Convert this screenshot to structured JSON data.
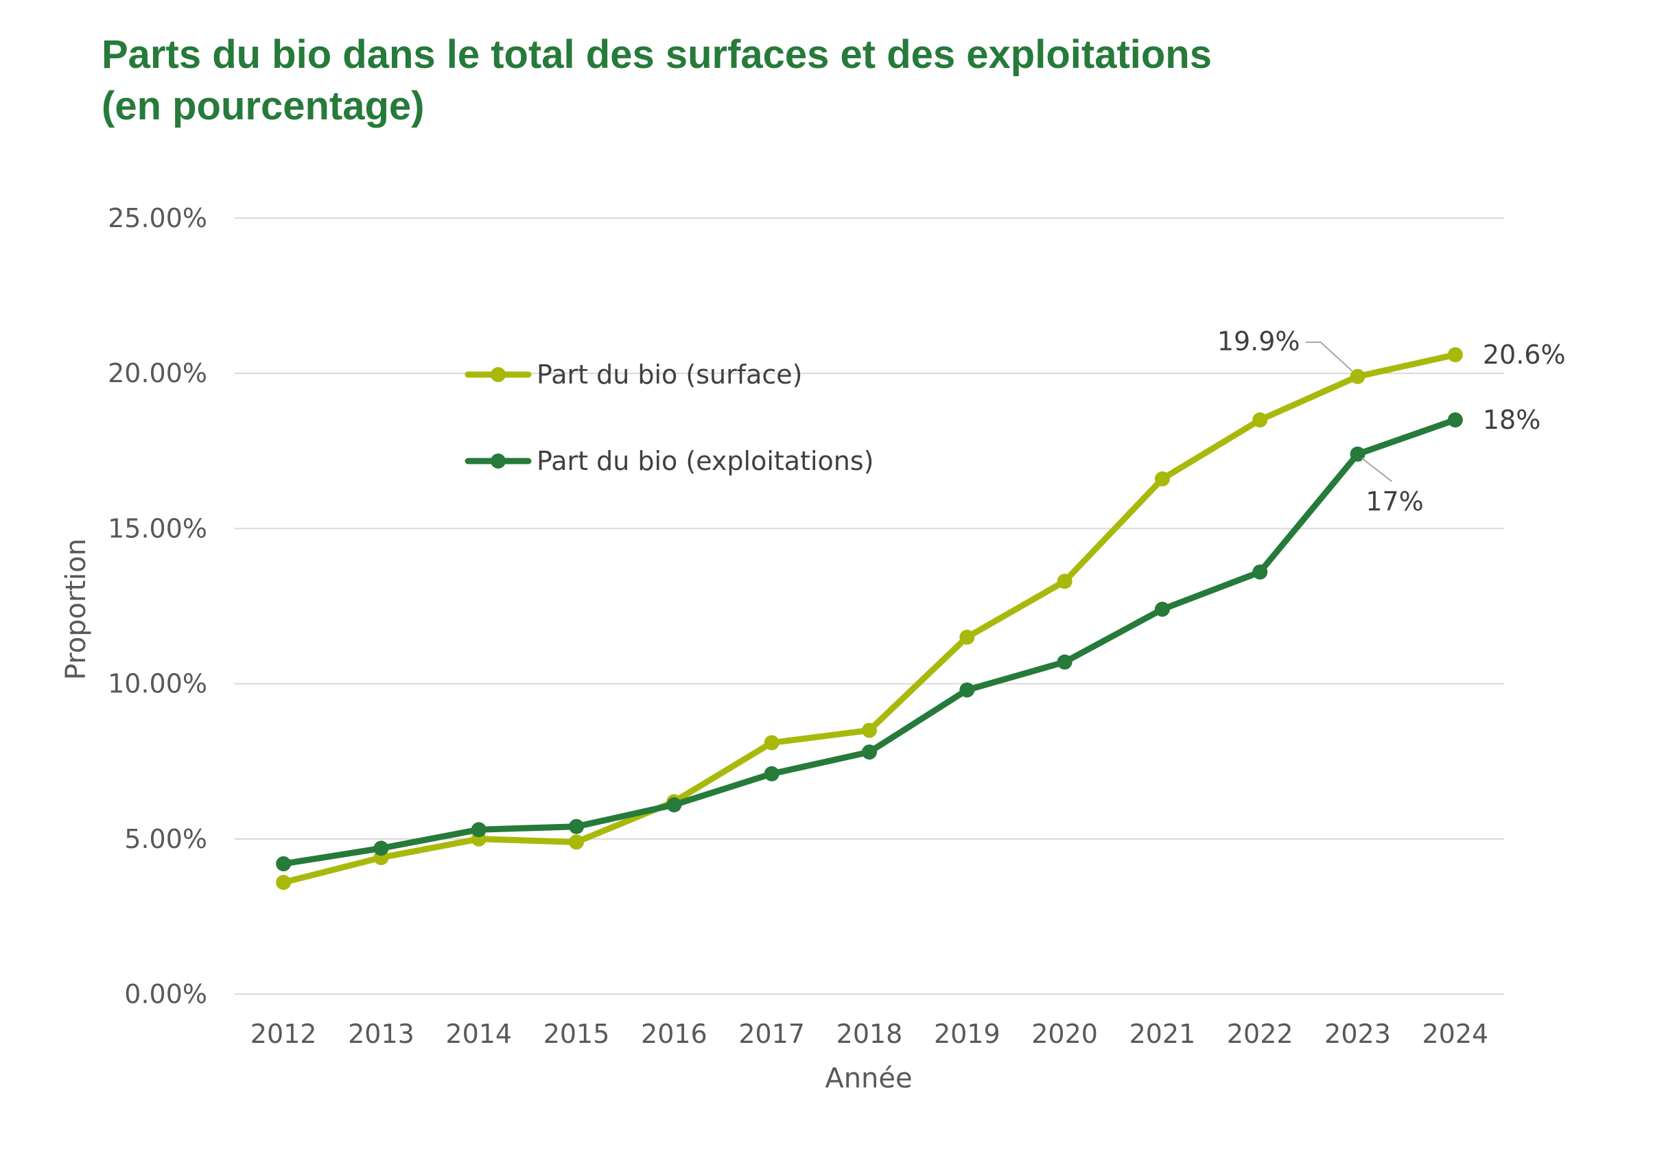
{
  "chart_data": {
    "type": "line",
    "title_line1": "Parts du bio dans le total des surfaces et des exploitations",
    "title_line2": "(en pourcentage)",
    "xlabel": "Année",
    "ylabel": "Proportion",
    "ylim": [
      0,
      25
    ],
    "yticks": [
      "0.00%",
      "5.00%",
      "10.00%",
      "15.00%",
      "20.00%",
      "25.00%"
    ],
    "grid": true,
    "legend_position": "top-left",
    "categories": [
      "2012",
      "2013",
      "2014",
      "2015",
      "2016",
      "2017",
      "2018",
      "2019",
      "2020",
      "2021",
      "2022",
      "2023",
      "2024"
    ],
    "series": [
      {
        "name": "Part du bio (surface)",
        "color": "#a9b90c",
        "values": [
          3.6,
          4.4,
          5.0,
          4.9,
          6.2,
          8.1,
          8.5,
          11.5,
          13.3,
          16.6,
          18.5,
          19.9,
          20.6
        ]
      },
      {
        "name": "Part du bio (exploitations)",
        "color": "#267a3a",
        "values": [
          4.2,
          4.7,
          5.3,
          5.4,
          6.1,
          7.1,
          7.8,
          9.8,
          10.7,
          12.4,
          13.6,
          17.4,
          18.5
        ]
      }
    ],
    "annotations": [
      {
        "series": 0,
        "index": 11,
        "text": "19.9%"
      },
      {
        "series": 0,
        "index": 12,
        "text": "20.6%"
      },
      {
        "series": 1,
        "index": 11,
        "text": "17%"
      },
      {
        "series": 1,
        "index": 12,
        "text": "18%"
      }
    ],
    "gridline_color": "#d9d9d9",
    "leader_color": "#a6a6a6"
  }
}
